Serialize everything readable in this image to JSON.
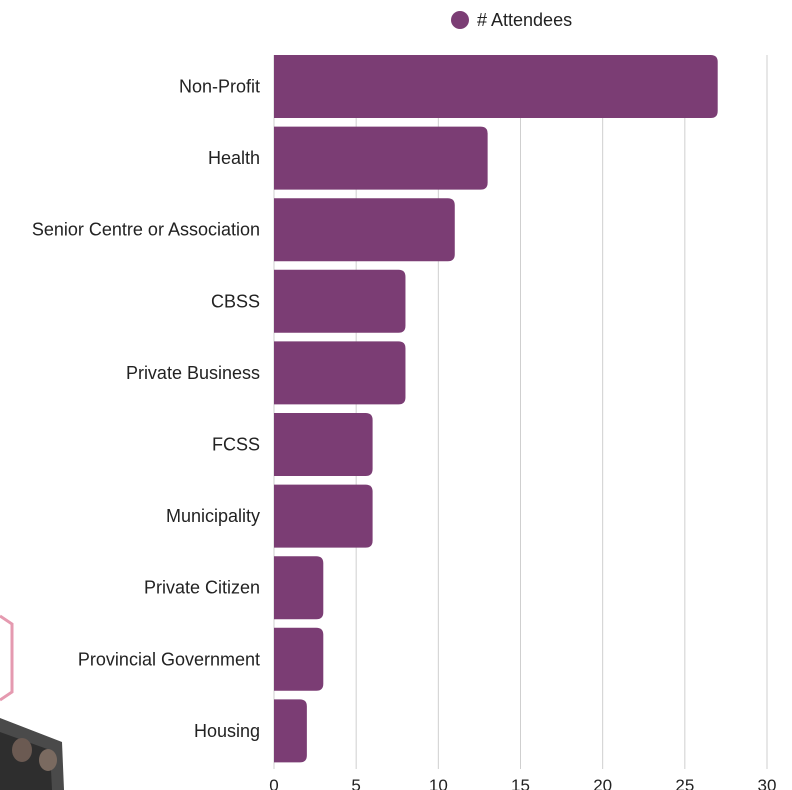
{
  "colors": {
    "bar": "#7b3d74",
    "grid": "#cfcfcf",
    "text": "#222222"
  },
  "chart_data": {
    "type": "bar",
    "orientation": "horizontal",
    "title": "",
    "xlabel": "",
    "ylabel": "",
    "categories": [
      "Non-Profit",
      "Health",
      "Senior Centre or Association",
      "CBSS",
      "Private Business",
      "FCSS",
      "Municipality",
      "Private Citizen",
      "Provincial Government",
      "Housing"
    ],
    "series": [
      {
        "name": "# Attendees",
        "values": [
          27,
          13,
          11,
          8,
          8,
          6,
          6,
          3,
          3,
          2
        ]
      }
    ],
    "xlim": [
      0,
      30
    ],
    "xticks": [
      0,
      5,
      10,
      15,
      20,
      25,
      30
    ],
    "grid": true,
    "legend_position": "top-center"
  }
}
